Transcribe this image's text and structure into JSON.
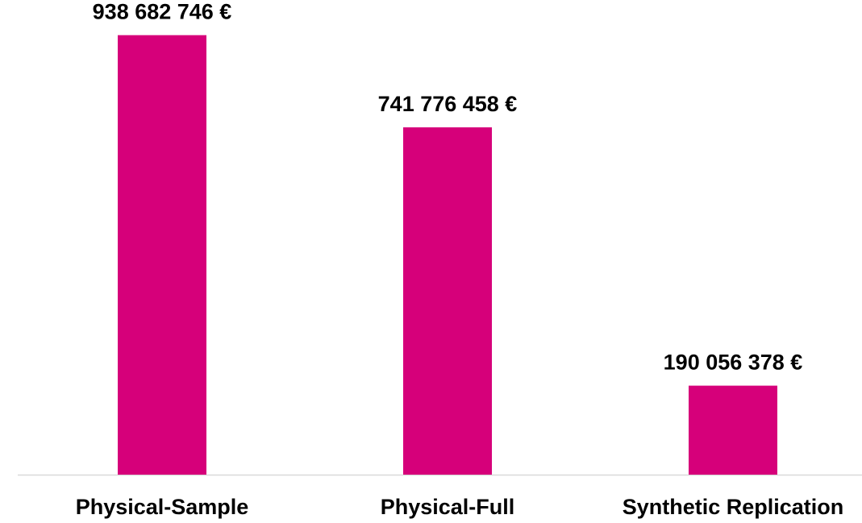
{
  "chart_data": {
    "type": "bar",
    "categories": [
      "Physical-Sample",
      "Physical-Full",
      "Synthetic Replication"
    ],
    "values": [
      938682746,
      741776458,
      190056378
    ],
    "value_labels": [
      "938 682 746 €",
      "741 776 458 €",
      "190 056 378 €"
    ],
    "title": "",
    "xlabel": "",
    "ylabel": "",
    "ylim": [
      0,
      1000000000
    ],
    "grid": false,
    "legend": "none",
    "bar_color": "#D6007A",
    "axis_color": "#D9D9D9"
  }
}
